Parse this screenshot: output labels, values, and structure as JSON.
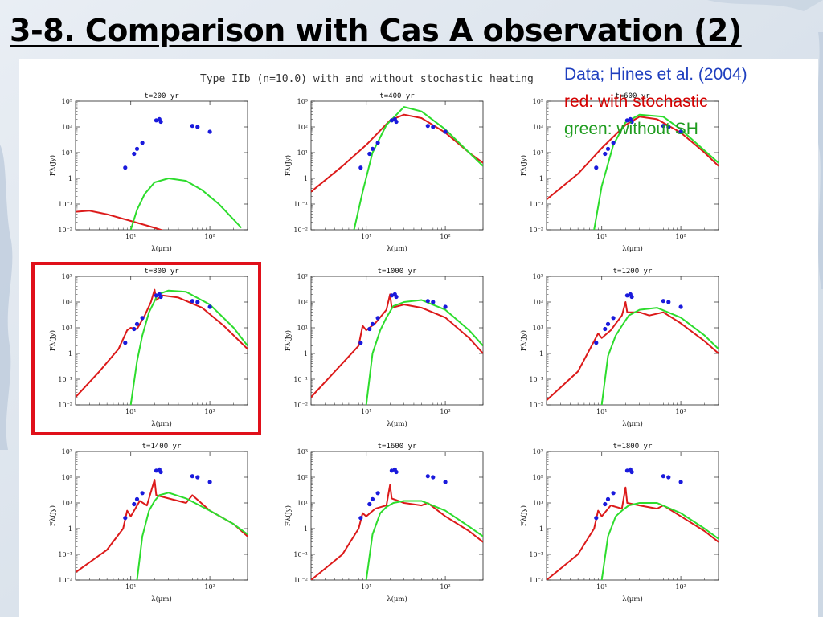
{
  "slide": {
    "title": "3-8. Comparison with Cas A observation (2)"
  },
  "legend": {
    "data_text": "Data; Hines et al. (2004)",
    "red_text": "red: with stochastic",
    "green_text": "green: without SH"
  },
  "colors": {
    "observation": "#1a1adc",
    "with_stochastic": "#dc1a1a",
    "without_sh": "#2ddc2d",
    "highlight_box": "#e0101a"
  },
  "highlighted_panel": "t=800 yr",
  "chart_data": {
    "type": "line",
    "title": "Type IIb (n=10.0) with and without stochastic heating",
    "xlabel": "λ(μm)",
    "ylabel": "Fλ(Jy)",
    "xscale": "log",
    "yscale": "log",
    "xlim": [
      2,
      300
    ],
    "ylim": [
      0.01,
      1000
    ],
    "x_ticks": [
      "10¹",
      "10²"
    ],
    "y_ticks": [
      "10⁻²",
      "10⁻¹",
      "1",
      "10¹",
      "10²",
      "10³"
    ],
    "observations": {
      "name": "Data; Hines et al. (2004)",
      "points": [
        [
          8.5,
          2.6
        ],
        [
          11,
          9
        ],
        [
          12,
          14
        ],
        [
          14,
          24
        ],
        [
          21,
          180
        ],
        [
          23,
          200
        ],
        [
          24,
          160
        ],
        [
          60,
          110
        ],
        [
          70,
          100
        ],
        [
          100,
          65
        ]
      ]
    },
    "panels": [
      {
        "title": "t=200 yr",
        "series": [
          {
            "name": "red: with stochastic",
            "points": [
              [
                2,
                0.05
              ],
              [
                3,
                0.055
              ],
              [
                5,
                0.04
              ],
              [
                10,
                0.022
              ],
              [
                20,
                0.012
              ],
              [
                30,
                0.008
              ]
            ]
          },
          {
            "name": "green: without SH",
            "points": [
              [
                10,
                0.01
              ],
              [
                12,
                0.06
              ],
              [
                15,
                0.25
              ],
              [
                20,
                0.7
              ],
              [
                30,
                1.0
              ],
              [
                50,
                0.8
              ],
              [
                80,
                0.35
              ],
              [
                130,
                0.1
              ],
              [
                200,
                0.025
              ],
              [
                250,
                0.012
              ]
            ]
          }
        ]
      },
      {
        "title": "t=400 yr",
        "series": [
          {
            "name": "red: with stochastic",
            "points": [
              [
                2,
                0.3
              ],
              [
                5,
                3
              ],
              [
                10,
                20
              ],
              [
                20,
                180
              ],
              [
                30,
                300
              ],
              [
                50,
                220
              ],
              [
                100,
                60
              ],
              [
                200,
                10
              ],
              [
                300,
                4
              ]
            ]
          },
          {
            "name": "green: without SH",
            "points": [
              [
                7,
                0.01
              ],
              [
                9,
                0.3
              ],
              [
                12,
                10
              ],
              [
                18,
                120
              ],
              [
                30,
                600
              ],
              [
                50,
                400
              ],
              [
                100,
                80
              ],
              [
                200,
                10
              ],
              [
                300,
                3
              ]
            ]
          }
        ]
      },
      {
        "title": "t=600 yr",
        "series": [
          {
            "name": "red: with stochastic",
            "points": [
              [
                2,
                0.15
              ],
              [
                5,
                1.5
              ],
              [
                10,
                15
              ],
              [
                20,
                120
              ],
              [
                30,
                250
              ],
              [
                50,
                200
              ],
              [
                100,
                60
              ],
              [
                200,
                10
              ],
              [
                300,
                3
              ]
            ]
          },
          {
            "name": "green: without SH",
            "points": [
              [
                8,
                0.01
              ],
              [
                10,
                0.5
              ],
              [
                14,
                20
              ],
              [
                20,
                150
              ],
              [
                30,
                300
              ],
              [
                60,
                250
              ],
              [
                100,
                80
              ],
              [
                200,
                12
              ],
              [
                300,
                4
              ]
            ]
          }
        ]
      },
      {
        "title": "t=800 yr",
        "series": [
          {
            "name": "red: with stochastic",
            "points": [
              [
                2,
                0.02
              ],
              [
                4,
                0.2
              ],
              [
                7,
                1.5
              ],
              [
                9,
                8
              ],
              [
                10,
                10
              ],
              [
                12,
                9
              ],
              [
                15,
                30
              ],
              [
                18,
                100
              ],
              [
                20,
                300
              ],
              [
                21,
                120
              ],
              [
                25,
                180
              ],
              [
                40,
                150
              ],
              [
                80,
                60
              ],
              [
                150,
                12
              ],
              [
                300,
                1.5
              ]
            ]
          },
          {
            "name": "green: without SH",
            "points": [
              [
                10,
                0.01
              ],
              [
                12,
                0.5
              ],
              [
                14,
                5
              ],
              [
                17,
                40
              ],
              [
                22,
                200
              ],
              [
                30,
                280
              ],
              [
                50,
                250
              ],
              [
                100,
                80
              ],
              [
                200,
                10
              ],
              [
                300,
                2
              ]
            ]
          }
        ]
      },
      {
        "title": "t=1000 yr",
        "series": [
          {
            "name": "red: with stochastic",
            "points": [
              [
                2,
                0.02
              ],
              [
                4,
                0.2
              ],
              [
                8,
                2
              ],
              [
                9,
                12
              ],
              [
                10,
                8
              ],
              [
                13,
                15
              ],
              [
                18,
                50
              ],
              [
                20,
                200
              ],
              [
                21,
                60
              ],
              [
                30,
                80
              ],
              [
                50,
                60
              ],
              [
                100,
                25
              ],
              [
                200,
                4
              ],
              [
                300,
                1
              ]
            ]
          },
          {
            "name": "green: without SH",
            "points": [
              [
                10,
                0.01
              ],
              [
                12,
                1
              ],
              [
                15,
                8
              ],
              [
                18,
                25
              ],
              [
                22,
                70
              ],
              [
                30,
                100
              ],
              [
                50,
                120
              ],
              [
                100,
                50
              ],
              [
                200,
                8
              ],
              [
                300,
                2
              ]
            ]
          }
        ]
      },
      {
        "title": "t=1200 yr",
        "series": [
          {
            "name": "red: with stochastic",
            "points": [
              [
                2,
                0.015
              ],
              [
                5,
                0.2
              ],
              [
                8,
                3
              ],
              [
                9,
                6
              ],
              [
                10,
                4
              ],
              [
                13,
                8
              ],
              [
                18,
                30
              ],
              [
                20,
                100
              ],
              [
                21,
                40
              ],
              [
                30,
                40
              ],
              [
                40,
                30
              ],
              [
                60,
                40
              ],
              [
                100,
                15
              ],
              [
                200,
                3
              ],
              [
                300,
                1
              ]
            ]
          },
          {
            "name": "green: without SH",
            "points": [
              [
                10,
                0.01
              ],
              [
                12,
                0.8
              ],
              [
                15,
                5
              ],
              [
                18,
                12
              ],
              [
                22,
                30
              ],
              [
                30,
                50
              ],
              [
                50,
                60
              ],
              [
                100,
                25
              ],
              [
                200,
                5
              ],
              [
                300,
                1.5
              ]
            ]
          }
        ]
      },
      {
        "title": "t=1400 yr",
        "series": [
          {
            "name": "red: with stochastic",
            "points": [
              [
                2,
                0.02
              ],
              [
                5,
                0.15
              ],
              [
                8,
                1
              ],
              [
                9,
                5
              ],
              [
                10,
                3
              ],
              [
                13,
                12
              ],
              [
                16,
                8
              ],
              [
                20,
                80
              ],
              [
                21,
                20
              ],
              [
                30,
                15
              ],
              [
                50,
                10
              ],
              [
                60,
                20
              ],
              [
                100,
                5
              ],
              [
                200,
                1.5
              ],
              [
                300,
                0.5
              ]
            ]
          },
          {
            "name": "green: without SH",
            "points": [
              [
                12,
                0.01
              ],
              [
                14,
                0.5
              ],
              [
                17,
                5
              ],
              [
                20,
                12
              ],
              [
                23,
                20
              ],
              [
                30,
                25
              ],
              [
                50,
                15
              ],
              [
                100,
                5
              ],
              [
                200,
                1.5
              ],
              [
                300,
                0.6
              ]
            ]
          }
        ]
      },
      {
        "title": "t=1600 yr",
        "series": [
          {
            "name": "red: with stochastic",
            "points": [
              [
                2,
                0.01
              ],
              [
                5,
                0.1
              ],
              [
                8,
                1
              ],
              [
                9,
                4
              ],
              [
                10,
                3
              ],
              [
                13,
                6
              ],
              [
                18,
                8
              ],
              [
                20,
                50
              ],
              [
                21,
                15
              ],
              [
                30,
                10
              ],
              [
                50,
                8
              ],
              [
                60,
                10
              ],
              [
                100,
                3
              ],
              [
                200,
                0.8
              ],
              [
                300,
                0.3
              ]
            ]
          },
          {
            "name": "green: without SH",
            "points": [
              [
                10,
                0.01
              ],
              [
                12,
                0.6
              ],
              [
                15,
                4
              ],
              [
                18,
                7
              ],
              [
                22,
                10
              ],
              [
                30,
                12
              ],
              [
                50,
                12
              ],
              [
                100,
                5
              ],
              [
                200,
                1.2
              ],
              [
                300,
                0.5
              ]
            ]
          }
        ]
      },
      {
        "title": "t=1800 yr",
        "series": [
          {
            "name": "red: with stochastic",
            "points": [
              [
                2,
                0.01
              ],
              [
                5,
                0.1
              ],
              [
                8,
                1
              ],
              [
                9,
                5
              ],
              [
                10,
                3
              ],
              [
                13,
                8
              ],
              [
                18,
                6
              ],
              [
                20,
                40
              ],
              [
                21,
                10
              ],
              [
                30,
                8
              ],
              [
                50,
                6
              ],
              [
                60,
                8
              ],
              [
                100,
                3
              ],
              [
                200,
                0.8
              ],
              [
                300,
                0.3
              ]
            ]
          },
          {
            "name": "green: without SH",
            "points": [
              [
                10,
                0.01
              ],
              [
                12,
                0.5
              ],
              [
                15,
                3
              ],
              [
                18,
                5
              ],
              [
                22,
                8
              ],
              [
                30,
                10
              ],
              [
                50,
                10
              ],
              [
                100,
                4
              ],
              [
                200,
                1
              ],
              [
                300,
                0.4
              ]
            ]
          }
        ]
      }
    ]
  }
}
